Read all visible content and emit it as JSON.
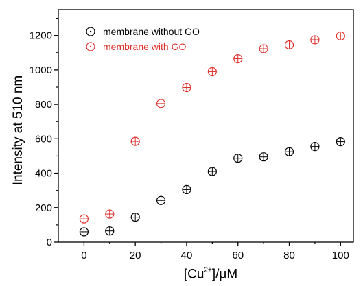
{
  "chart_data": {
    "type": "scatter",
    "x": [
      0,
      10,
      20,
      30,
      40,
      50,
      60,
      70,
      80,
      90,
      100
    ],
    "series": [
      {
        "name": "membrane without GO",
        "color": "#000000",
        "values": [
          60,
          65,
          145,
          242,
          305,
          410,
          487,
          495,
          525,
          555,
          583
        ]
      },
      {
        "name": "membrane with GO",
        "color": "#e0302a",
        "values": [
          135,
          163,
          585,
          805,
          898,
          990,
          1065,
          1123,
          1145,
          1175,
          1197
        ]
      }
    ],
    "xlim": [
      -10,
      105
    ],
    "ylim": [
      0,
      1350
    ],
    "xticks": [
      "0",
      "20",
      "40",
      "60",
      "80",
      "100"
    ],
    "xtick_values": [
      0,
      20,
      40,
      60,
      80,
      100
    ],
    "yticks": [
      "0",
      "200",
      "400",
      "600",
      "800",
      "1000",
      "1200"
    ],
    "ytick_values": [
      0,
      200,
      400,
      600,
      800,
      1000,
      1200
    ],
    "ylabel": "Intensity at 510 nm",
    "xlabel_prefix": "[Cu",
    "xlabel_sup": "2+",
    "xlabel_suffix": "]/μM",
    "marker": "circle-plus",
    "legend_position": "top-left",
    "grid": false
  }
}
